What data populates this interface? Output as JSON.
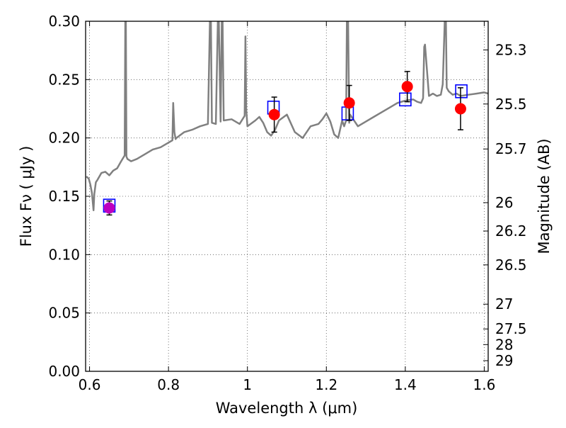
{
  "chart_data": {
    "type": "scatter",
    "xlabel": "Wavelength  λ (μm)",
    "ylabel_left": "Flux  Fν  ( μJy )",
    "ylabel_right": "Magnitude (AB)",
    "xlim": [
      0.59,
      1.61
    ],
    "ylim": [
      0.0,
      0.3
    ],
    "grid": true,
    "x_ticks": [
      0.6,
      0.8,
      1.0,
      1.2,
      1.4,
      1.6
    ],
    "x_tick_labels": [
      "0.6",
      "0.8",
      "1",
      "1.2",
      "1.4",
      "1.6"
    ],
    "y_ticks": [
      0.0,
      0.05,
      0.1,
      0.15,
      0.2,
      0.25,
      0.3
    ],
    "y_tick_labels": [
      "0.00",
      "0.05",
      "0.10",
      "0.15",
      "0.20",
      "0.25",
      "0.30"
    ],
    "right_ticks": [
      25.3,
      25.5,
      25.7,
      26,
      26.2,
      26.5,
      27,
      27.5,
      28,
      29
    ],
    "right_tick_labels": [
      "25.3",
      "25.5",
      "25.7",
      "26",
      "26.2",
      "26.5",
      "27",
      "27.5",
      "28",
      "29"
    ],
    "colors": {
      "model": "#808080",
      "observed": "#ff0000",
      "observed_first": "#bf00bf",
      "synthetic": "#0000ff",
      "errorbar": "#000000"
    },
    "model_spectrum": {
      "x": [
        0.592,
        0.598,
        0.602,
        0.606,
        0.61,
        0.612,
        0.616,
        0.62,
        0.63,
        0.64,
        0.65,
        0.66,
        0.67,
        0.68,
        0.689,
        0.6905,
        0.692,
        0.6935,
        0.696,
        0.705,
        0.72,
        0.74,
        0.76,
        0.78,
        0.8,
        0.81,
        0.812,
        0.815,
        0.818,
        0.82,
        0.84,
        0.86,
        0.88,
        0.9,
        0.905,
        0.9075,
        0.91,
        0.92,
        0.925,
        0.9275,
        0.932,
        0.935,
        0.937,
        0.94,
        0.96,
        0.98,
        0.993,
        0.995,
        0.997,
        1.0,
        1.02,
        1.03,
        1.04,
        1.05,
        1.06,
        1.07,
        1.08,
        1.1,
        1.12,
        1.14,
        1.16,
        1.18,
        1.19,
        1.2,
        1.21,
        1.22,
        1.23,
        1.24,
        1.245,
        1.25,
        1.252,
        1.255,
        1.258,
        1.26,
        1.28,
        1.3,
        1.32,
        1.34,
        1.36,
        1.38,
        1.4,
        1.42,
        1.43,
        1.44,
        1.445,
        1.448,
        1.45,
        1.46,
        1.47,
        1.48,
        1.49,
        1.495,
        1.5,
        1.503,
        1.505,
        1.51,
        1.52,
        1.53,
        1.54,
        1.56,
        1.58,
        1.6,
        1.61
      ],
      "y": [
        0.167,
        0.165,
        0.16,
        0.153,
        0.138,
        0.152,
        0.162,
        0.164,
        0.17,
        0.171,
        0.168,
        0.172,
        0.174,
        0.18,
        0.185,
        0.3,
        0.3,
        0.184,
        0.182,
        0.18,
        0.182,
        0.186,
        0.19,
        0.192,
        0.196,
        0.198,
        0.23,
        0.205,
        0.199,
        0.2,
        0.205,
        0.207,
        0.21,
        0.212,
        0.3,
        0.3,
        0.213,
        0.212,
        0.3,
        0.3,
        0.214,
        0.3,
        0.3,
        0.215,
        0.216,
        0.212,
        0.219,
        0.287,
        0.225,
        0.21,
        0.215,
        0.218,
        0.213,
        0.205,
        0.202,
        0.207,
        0.215,
        0.22,
        0.205,
        0.2,
        0.21,
        0.212,
        0.216,
        0.221,
        0.214,
        0.203,
        0.2,
        0.215,
        0.21,
        0.215,
        0.3,
        0.3,
        0.213,
        0.22,
        0.21,
        0.214,
        0.218,
        0.222,
        0.226,
        0.23,
        0.232,
        0.233,
        0.231,
        0.23,
        0.234,
        0.278,
        0.28,
        0.236,
        0.238,
        0.236,
        0.237,
        0.246,
        0.3,
        0.3,
        0.243,
        0.24,
        0.237,
        0.238,
        0.236,
        0.237,
        0.238,
        0.239,
        0.238
      ]
    },
    "observed": {
      "x": [
        0.65,
        1.068,
        1.258,
        1.405,
        1.54
      ],
      "y": [
        0.14,
        0.22,
        0.23,
        0.244,
        0.225
      ],
      "yerr": [
        0.006,
        0.015,
        0.015,
        0.013,
        0.018
      ]
    },
    "synthetic": {
      "x": [
        0.65,
        1.066,
        1.254,
        1.4,
        1.542
      ],
      "y": [
        0.142,
        0.226,
        0.221,
        0.233,
        0.24
      ]
    }
  }
}
